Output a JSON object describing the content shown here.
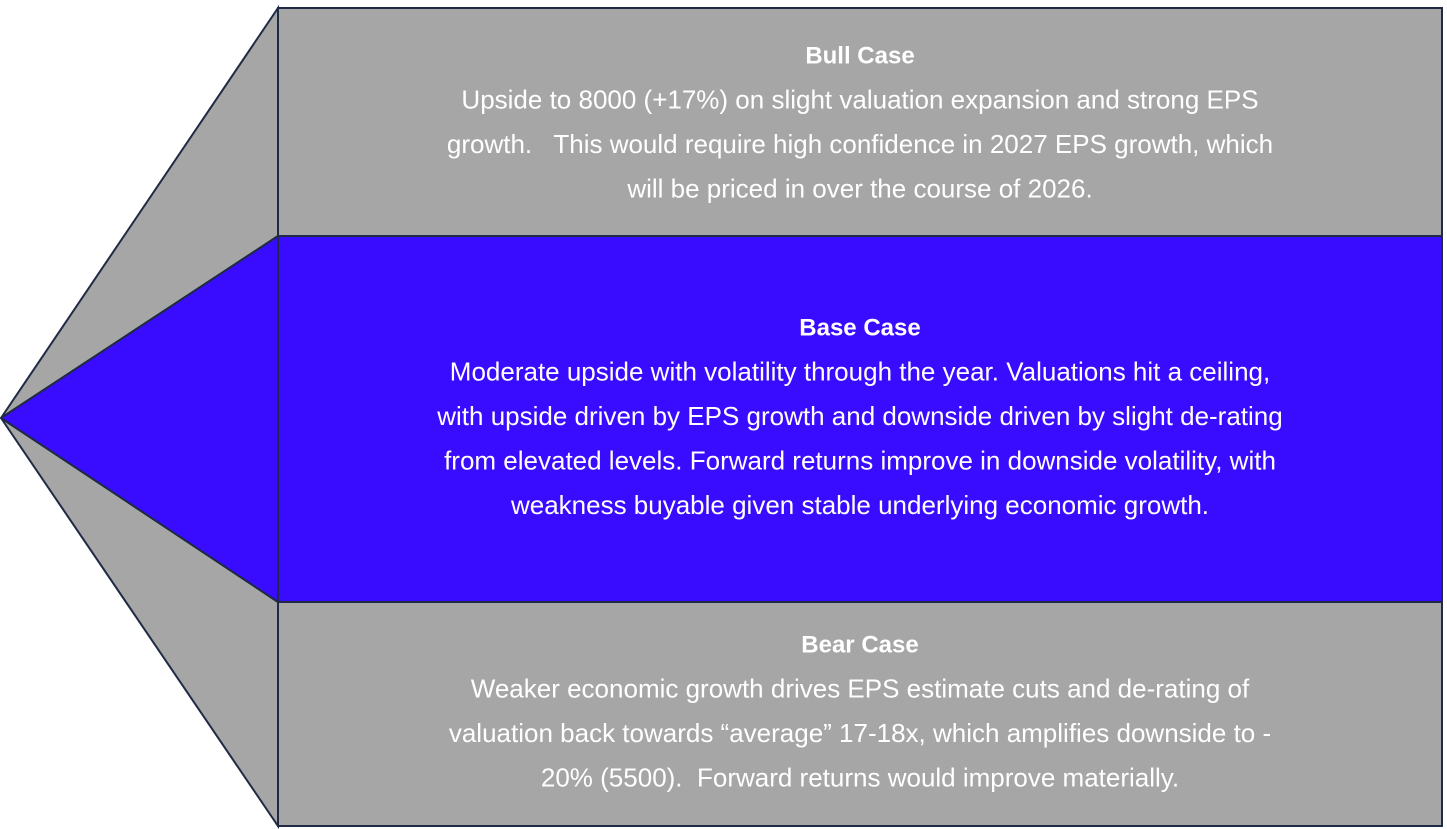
{
  "cases": [
    {
      "title": "Bull Case",
      "lines": [
        "Upside to 8000 (+17%) on slight valuation expansion and strong EPS",
        "growth.   This would require high confidence in 2027 EPS growth, which",
        "will be priced in over the course of 2026."
      ]
    },
    {
      "title": "Base Case",
      "lines": [
        "Moderate upside with volatility through the year. Valuations hit a ceiling,",
        "with upside driven by EPS growth and downside driven by slight de-rating",
        "from elevated levels. Forward returns improve in downside volatility, with",
        "weakness buyable given stable underlying economic growth."
      ]
    },
    {
      "title": "Bear Case",
      "lines": [
        "Weaker economic growth drives EPS estimate cuts and de-rating of",
        "valuation back towards “average” 17-18x, which amplifies downside to -",
        "20% (5500).  Forward returns would improve materially."
      ]
    }
  ]
}
